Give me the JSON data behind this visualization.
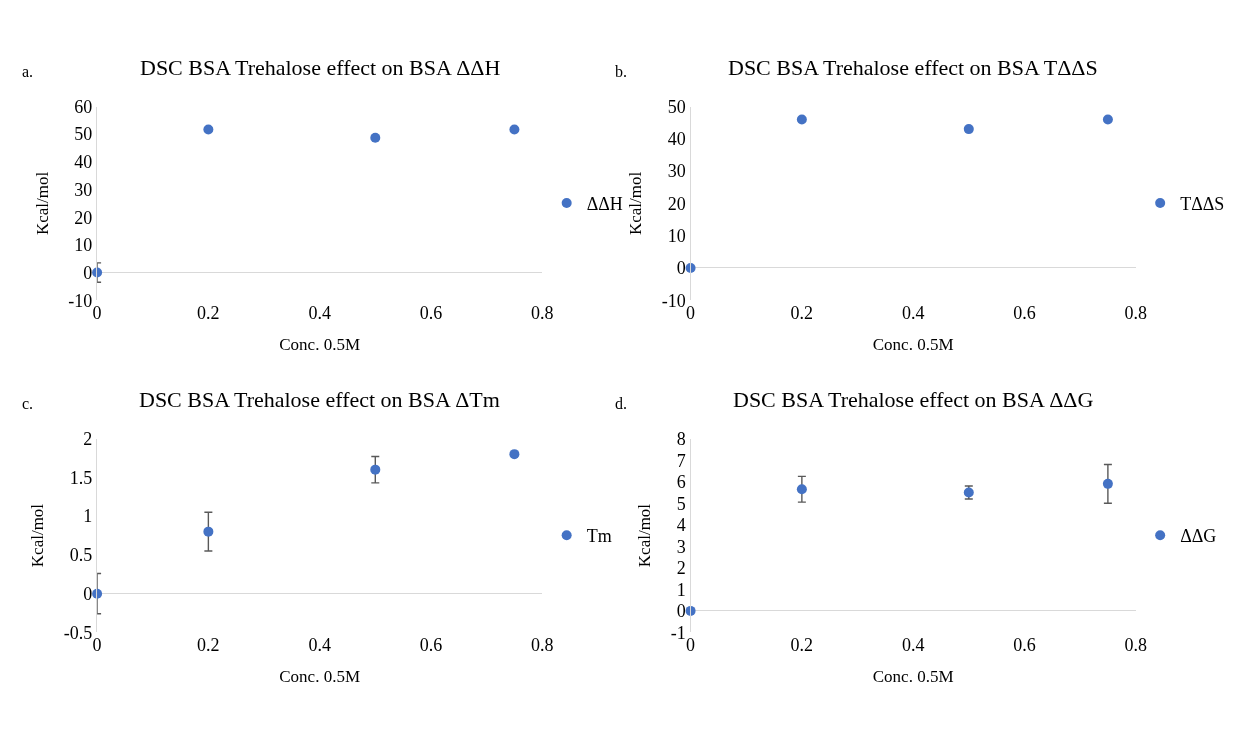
{
  "chart_data": [
    {
      "type": "scatter",
      "title": "DSC BSA Trehalose effect on BSA ΔΔH",
      "xlabel": "Conc. 0.5M",
      "ylabel": "Kcal/mol",
      "annotations": [
        "a."
      ],
      "x": [
        0,
        0.2,
        0.5,
        0.75
      ],
      "series": [
        {
          "name": "ΔΔH",
          "color": "#4472c4",
          "values": [
            0,
            51.7,
            48.7,
            51.7
          ],
          "errors": [
            3.5,
            null,
            null,
            null
          ]
        }
      ],
      "xlim": [
        0,
        0.8
      ],
      "xticks": [
        0,
        0.2,
        0.4,
        0.6,
        0.8
      ],
      "ylim": [
        -10,
        60
      ],
      "yticks": [
        -10,
        0,
        10,
        20,
        30,
        40,
        50,
        60
      ],
      "grid": false,
      "legend": "right",
      "marker": "circle"
    },
    {
      "type": "scatter",
      "title": "DSC BSA Trehalose effect on BSA TΔΔS",
      "xlabel": "Conc. 0.5M",
      "ylabel": "Kcal/mol",
      "annotations": [
        "b."
      ],
      "x": [
        0,
        0.2,
        0.5,
        0.75
      ],
      "series": [
        {
          "name": "TΔΔS",
          "color": "#4472c4",
          "values": [
            0,
            46,
            43,
            46
          ]
        }
      ],
      "xlim": [
        0,
        0.8
      ],
      "xticks": [
        0,
        0.2,
        0.4,
        0.6,
        0.8
      ],
      "ylim": [
        -10,
        50
      ],
      "yticks": [
        -10,
        0,
        10,
        20,
        30,
        40,
        50
      ],
      "grid": false,
      "legend": "right",
      "marker": "circle"
    },
    {
      "type": "scatter",
      "title": "DSC BSA Trehalose effect on BSA ΔTm",
      "xlabel": "Conc. 0.5M",
      "ylabel": "Kcal/mol",
      "annotations": [
        "c."
      ],
      "x": [
        0,
        0.2,
        0.5,
        0.75
      ],
      "series": [
        {
          "name": "Tm",
          "color": "#4472c4",
          "values": [
            0,
            0.8,
            1.6,
            1.8
          ],
          "errors": [
            0.26,
            0.25,
            0.17,
            null
          ]
        }
      ],
      "xlim": [
        0,
        0.8
      ],
      "xticks": [
        0,
        0.2,
        0.4,
        0.6,
        0.8
      ],
      "ylim": [
        -0.5,
        2
      ],
      "yticks": [
        -0.5,
        0,
        0.5,
        1,
        1.5,
        2
      ],
      "grid": false,
      "legend": "right",
      "marker": "circle"
    },
    {
      "type": "scatter",
      "title": "DSC BSA Trehalose effect on BSA ΔΔG",
      "xlabel": "Conc. 0.5M",
      "ylabel": "Kcal/mol",
      "annotations": [
        "d."
      ],
      "x": [
        0,
        0.2,
        0.5,
        0.75
      ],
      "series": [
        {
          "name": "ΔΔG",
          "color": "#4472c4",
          "values": [
            0,
            5.65,
            5.5,
            5.9
          ],
          "errors": [
            null,
            0.6,
            0.3,
            0.9
          ]
        }
      ],
      "xlim": [
        0,
        0.8
      ],
      "xticks": [
        0,
        0.2,
        0.4,
        0.6,
        0.8
      ],
      "ylim": [
        -1,
        8
      ],
      "yticks": [
        -1,
        0,
        1,
        2,
        3,
        4,
        5,
        6,
        7,
        8
      ],
      "grid": false,
      "legend": "right",
      "marker": "circle"
    }
  ]
}
